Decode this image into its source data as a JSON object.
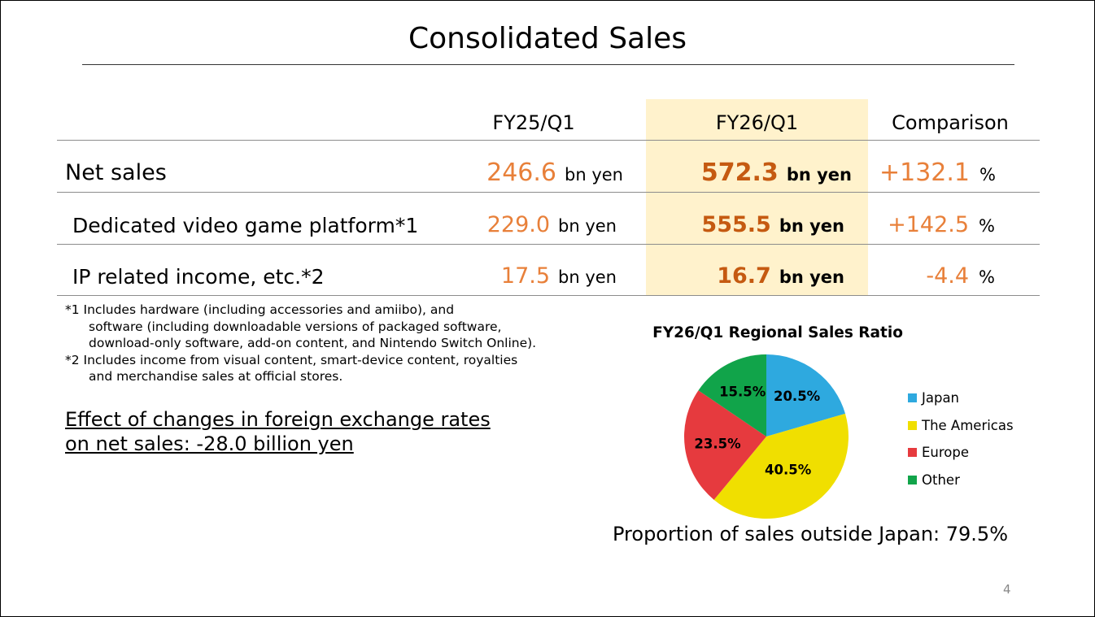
{
  "slide": {
    "title": "Consolidated Sales",
    "page_number": "4"
  },
  "table": {
    "headers": [
      "FY25/Q1",
      "FY26/Q1",
      "Comparison"
    ],
    "rows": [
      {
        "label": "Net sales",
        "fy25": "246.6",
        "fy25_unit": "bn yen",
        "fy26": "572.3",
        "fy26_unit": "bn yen",
        "comparison": "+132.1",
        "comparison_unit": "%"
      },
      {
        "label": "Dedicated video game platform*1",
        "fy25": "229.0",
        "fy25_unit": "bn yen",
        "fy26": "555.5",
        "fy26_unit": "bn yen",
        "comparison": "+142.5",
        "comparison_unit": "%"
      },
      {
        "label": "IP related income, etc.*2",
        "fy25": "17.5",
        "fy25_unit": "bn yen",
        "fy26": "16.7",
        "fy26_unit": "bn yen",
        "comparison": "-4.4",
        "comparison_unit": "%"
      }
    ]
  },
  "notes": {
    "n1_line1": "*1 Includes hardware (including accessories and amiibo), and",
    "n1_line2": "software (including downloadable versions of packaged software,",
    "n1_line3": "download-only software, add-on content, and Nintendo Switch Online).",
    "n2_line1": "*2 Includes income from visual content, smart-device content, royalties",
    "n2_line2": "and merchandise sales at official stores."
  },
  "fx_effect": {
    "line1": "Effect of changes in foreign exchange rates",
    "line2": "on net sales: -28.0 billion yen"
  },
  "footer": {
    "outside_japan": "Proportion of sales outside Japan: 79.5%"
  },
  "chart_data": {
    "type": "pie",
    "title": "FY26/Q1 Regional Sales Ratio",
    "categories": [
      "Japan",
      "The Americas",
      "Europe",
      "Other"
    ],
    "values": [
      20.5,
      40.5,
      23.5,
      15.5
    ],
    "labels": [
      "20.5%",
      "40.5%",
      "23.5%",
      "15.5%"
    ],
    "colors": [
      "#2ea9df",
      "#f0df00",
      "#e63a3e",
      "#11a44a"
    ],
    "start_angle": "12 o'clock",
    "direction": "clockwise",
    "legend_position": "right"
  }
}
